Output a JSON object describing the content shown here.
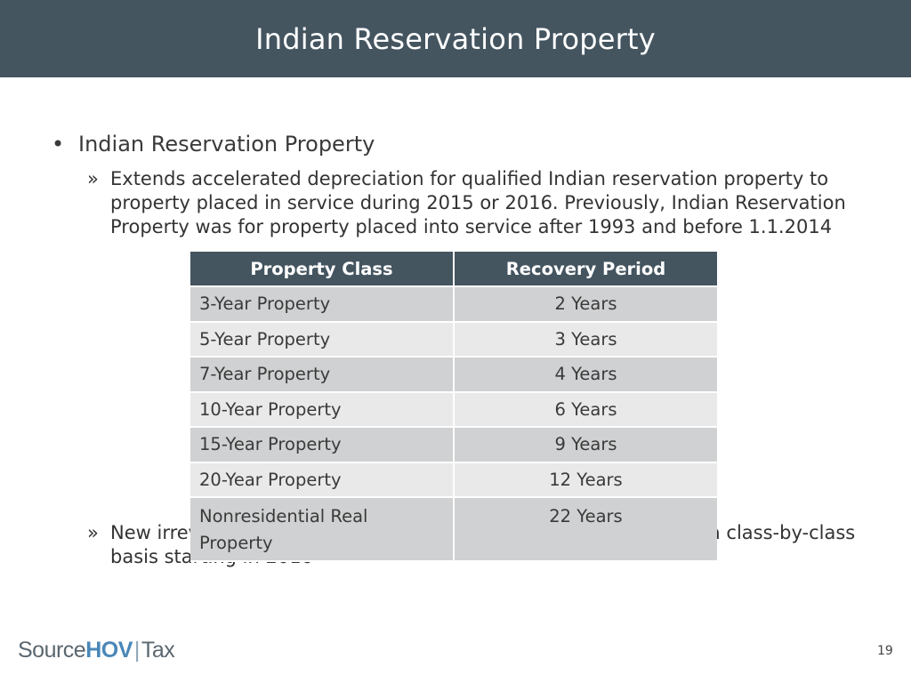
{
  "header": {
    "title": "Indian Reservation Property"
  },
  "bullet": {
    "symbol": "•",
    "text": "Indian Reservation Property"
  },
  "sub_items": [
    {
      "symbol": "»",
      "text": "Extends accelerated depreciation for qualified Indian reservation property to property placed in service during 2015 or 2016. Previously, Indian Reservation Property was for property placed into service after 1993 and before 1.1.2014"
    },
    {
      "symbol": "»",
      "text": "New irrevocable election to opt out of this special treatment on a class-by-class basis starting in 2016"
    }
  ],
  "table": {
    "headers": [
      "Property Class",
      "Recovery Period"
    ],
    "rows": [
      [
        "3-Year Property",
        "2 Years"
      ],
      [
        "5-Year Property",
        "3 Years"
      ],
      [
        "7-Year Property",
        "4 Years"
      ],
      [
        "10-Year Property",
        "6 Years"
      ],
      [
        "15-Year Property",
        "9 Years"
      ],
      [
        "20-Year Property",
        "12 Years"
      ],
      [
        "Nonresidential Real Property",
        "22 Years"
      ]
    ]
  },
  "footer": {
    "logo_source": "Source",
    "logo_hov": "HOV",
    "logo_bar": "|",
    "logo_tax": "Tax",
    "page_number": "19"
  },
  "colors": {
    "header_bg": "#445560",
    "row_dark": "#d0d1d2",
    "row_light": "#e9e9e9",
    "logo_accent": "#4a87b8"
  }
}
